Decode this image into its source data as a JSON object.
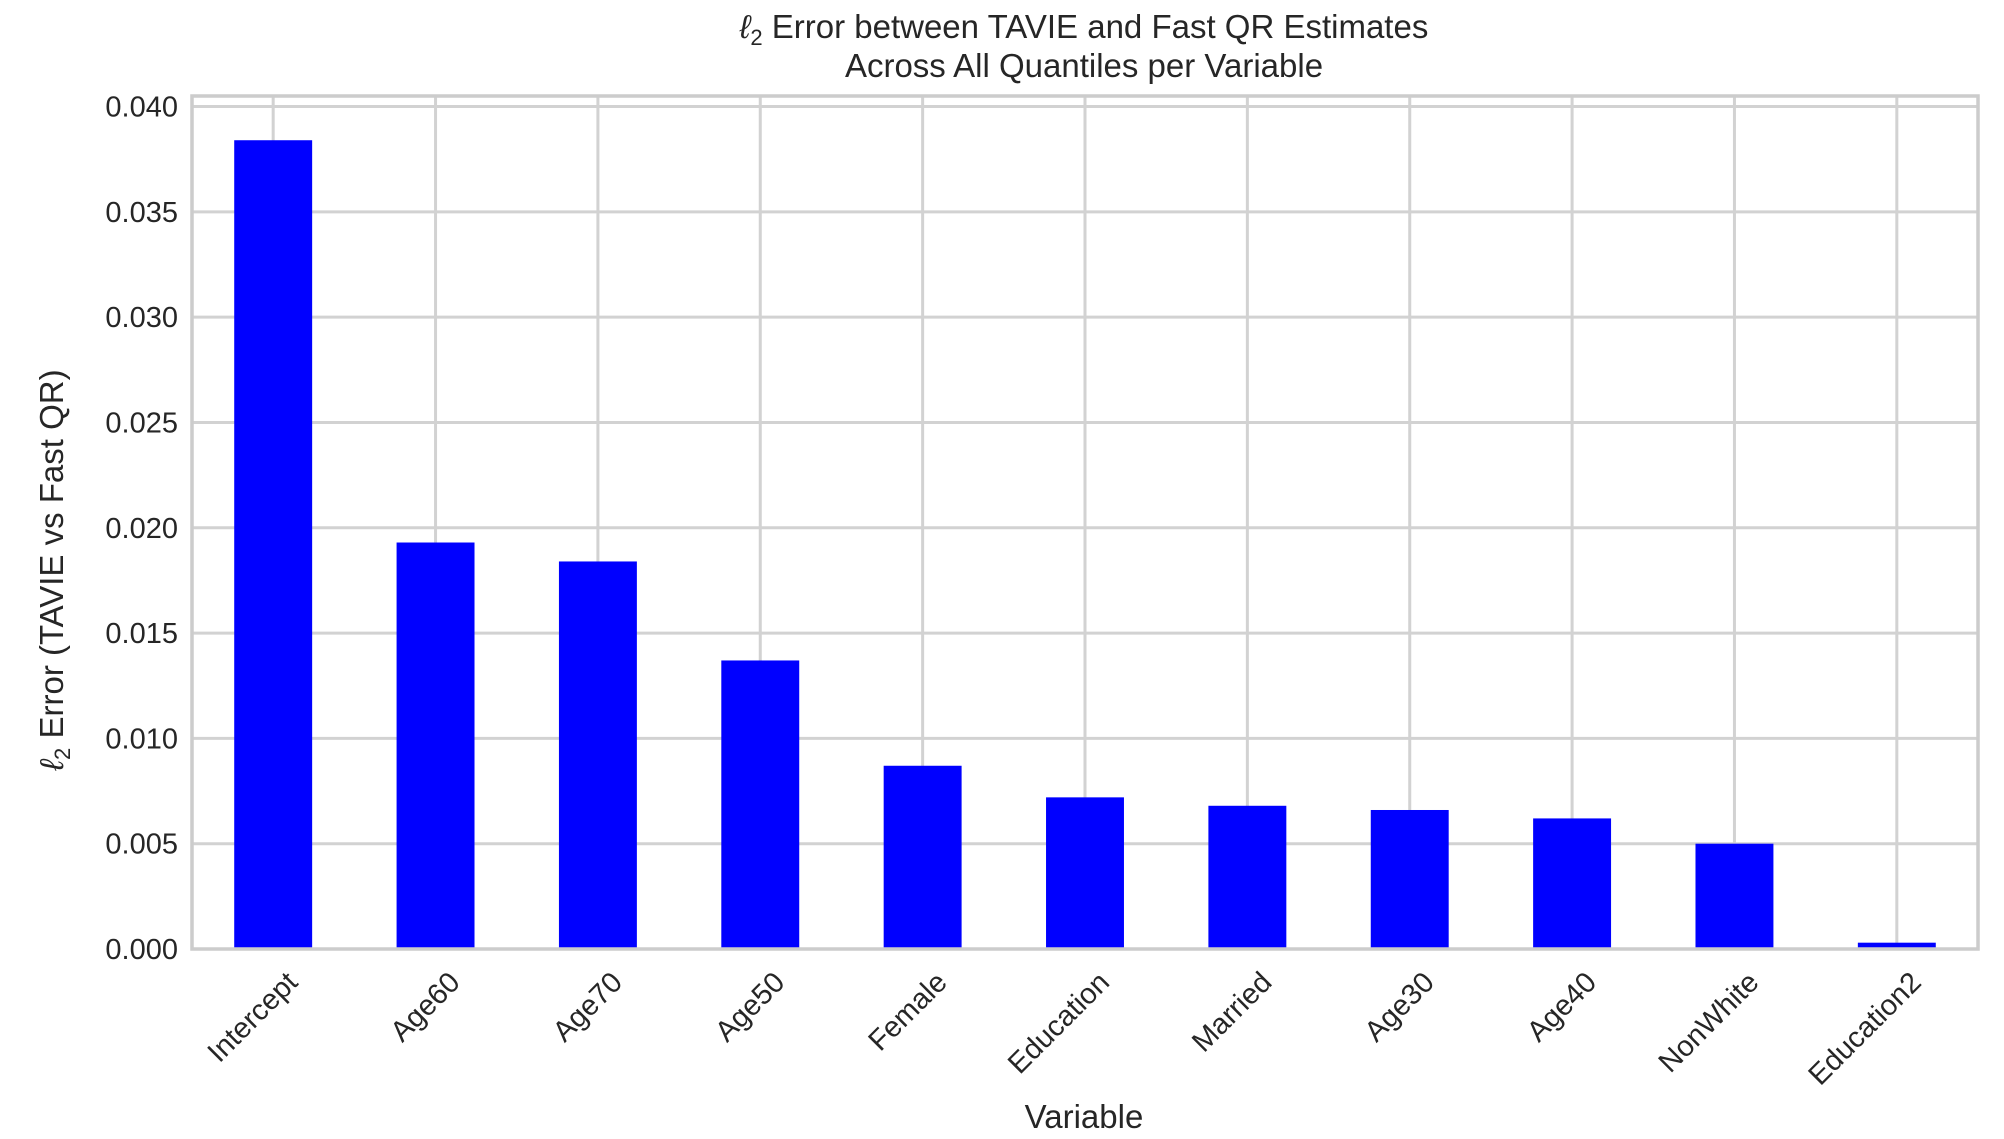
{
  "chart_data": {
    "type": "bar",
    "title": "ℓ2 Error between TAVIE and Fast QR Estimates",
    "subtitle": "Across All Quantiles per Variable",
    "title_parts": {
      "ell": "ℓ",
      "sub": "2",
      "rest": " Error between TAVIE and Fast QR Estimates"
    },
    "xlabel": "Variable",
    "ylabel": "ℓ2 Error (TAVIE vs Fast QR)",
    "ylabel_parts": {
      "ell": "ℓ",
      "sub": "2",
      "rest": " Error (TAVIE vs Fast QR)"
    },
    "categories": [
      "Intercept",
      "Age60",
      "Age70",
      "Age50",
      "Female",
      "Education",
      "Married",
      "Age30",
      "Age40",
      "NonWhite",
      "Education2"
    ],
    "values": [
      0.0384,
      0.0193,
      0.0184,
      0.0137,
      0.0087,
      0.0072,
      0.0068,
      0.0066,
      0.0062,
      0.005,
      0.0003
    ],
    "yticks": [
      0.0,
      0.005,
      0.01,
      0.015,
      0.02,
      0.025,
      0.03,
      0.035,
      0.04
    ],
    "ytick_labels": [
      "0.000",
      "0.005",
      "0.010",
      "0.015",
      "0.020",
      "0.025",
      "0.030",
      "0.035",
      "0.040"
    ],
    "ylim": [
      0,
      0.0405
    ],
    "grid": true,
    "bar_color": "#0000ff",
    "grid_color": "#d2d2d2",
    "frame_color": "#cccccc",
    "text_color": "#262626"
  }
}
